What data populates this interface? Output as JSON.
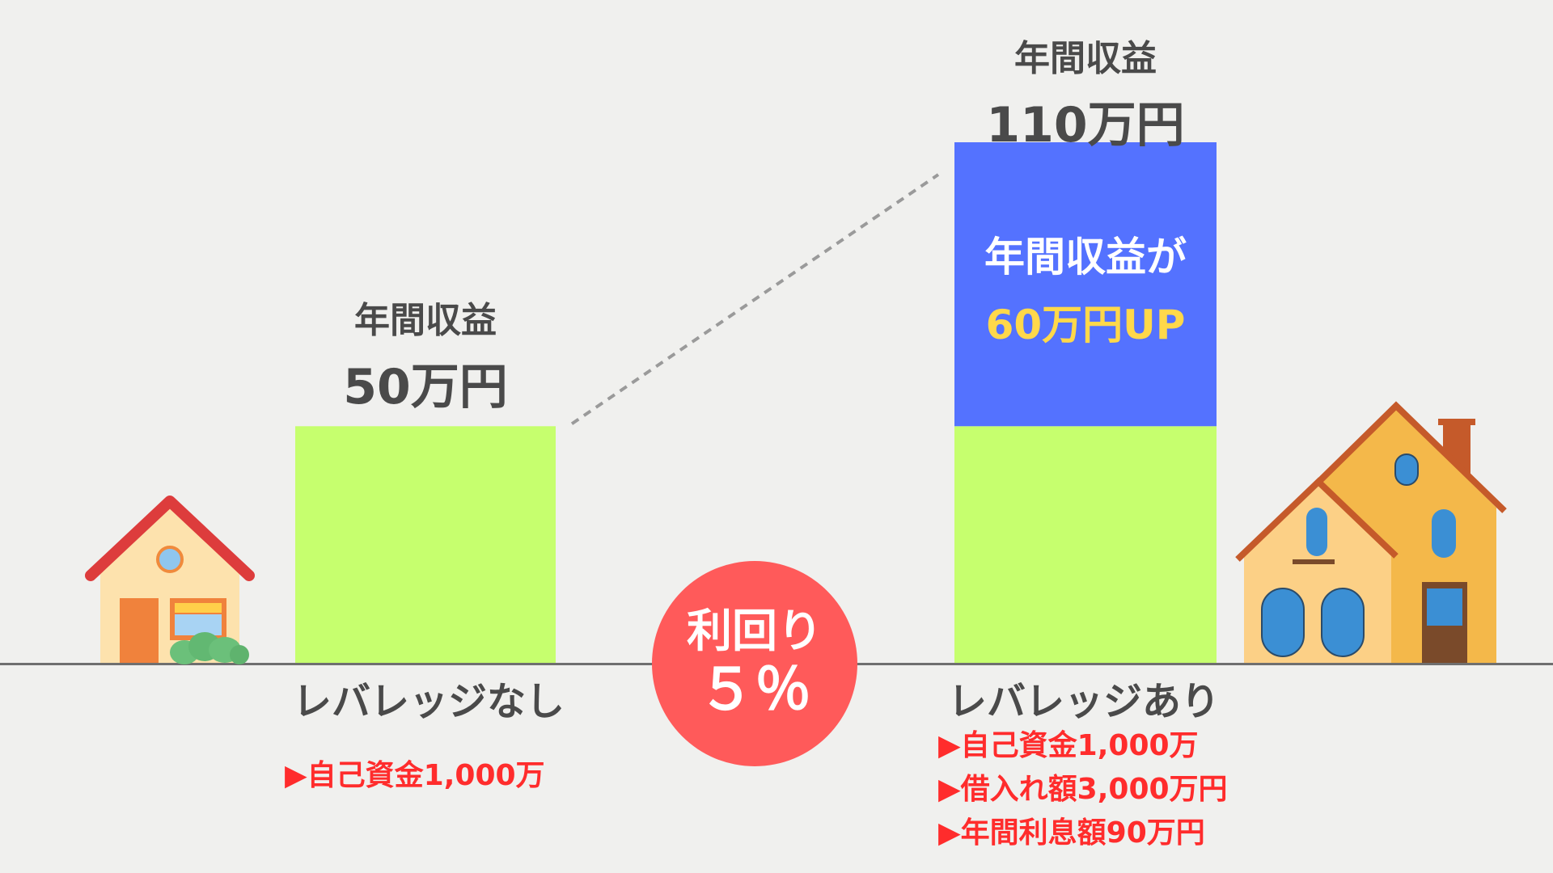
{
  "chart_data": {
    "type": "bar",
    "unit": "万円",
    "categories": [
      "レバレッジなし",
      "レバレッジあり"
    ],
    "series": [
      {
        "values": [
          50,
          50
        ]
      },
      {
        "values": [
          0,
          60
        ]
      }
    ],
    "bar_labels": [
      {
        "title": "年間収益",
        "value": "50万円"
      },
      {
        "title": "年間収益",
        "value": "110万円"
      }
    ],
    "colors": {
      "base": "#c6ff6e",
      "increase": "#5472ff",
      "highlight": "#ffd84a"
    },
    "ylim": [
      0,
      110
    ]
  },
  "increase_annotation": {
    "line1": "年間収益が",
    "line2": "60万円UP"
  },
  "yield_badge": {
    "line1": "利回り",
    "line2": "５％"
  },
  "left_details": [
    "▶自己資金1,000万"
  ],
  "right_details": [
    "▶自己資金1,000万",
    "▶借入れ額3,000万円",
    "▶年間利息額90万円"
  ],
  "icons": {
    "left": "small-house-icon",
    "right": "large-house-icon",
    "bush": "bush-icon"
  }
}
